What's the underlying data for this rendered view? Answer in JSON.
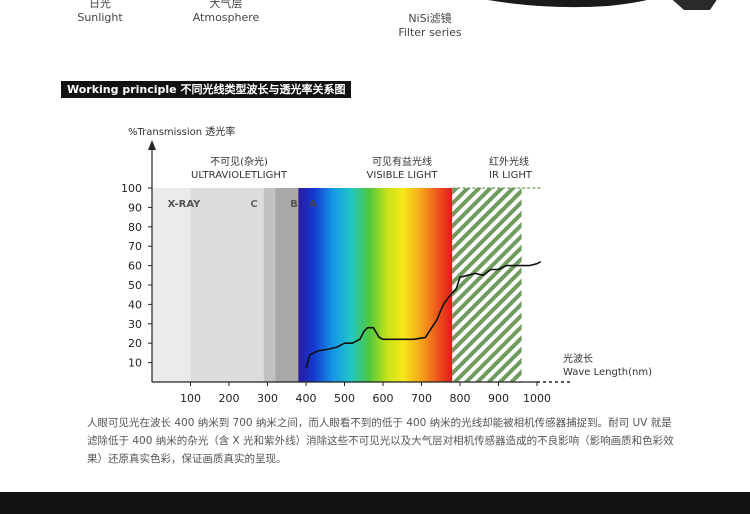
{
  "top": {
    "sunlight_cn": "日光",
    "sunlight_en": "Sunlight",
    "atmosphere_cn": "大气层",
    "atmosphere_en": "Atmosphere",
    "nisi_cn": "NiSi滤镜",
    "nisi_en": "Filter series"
  },
  "section": {
    "header": "Working principle 不同光线类型波长与透光率关系图"
  },
  "chart_data": {
    "type": "line",
    "ylabel": "%Transmission 透光率",
    "xlabel_cn": "光波长",
    "xlabel_en": "Wave Length(nm)",
    "x_ticks": [
      100,
      200,
      300,
      400,
      500,
      600,
      700,
      800,
      900,
      1000
    ],
    "y_ticks": [
      10,
      20,
      30,
      40,
      50,
      60,
      70,
      80,
      90,
      100
    ],
    "xlim": [
      0,
      1050
    ],
    "ylim": [
      0,
      100
    ],
    "regions": {
      "uv_title_cn": "不可见(杂光)",
      "uv_title_en": "ULTRAVIOLETLIGHT",
      "vis_title_cn": "可见有益光线",
      "vis_title_en": "VISIBLE LIGHT",
      "ir_title_cn": "红外光线",
      "ir_title_en": "IR LIGHT",
      "xray": "X-RAY",
      "c": "C",
      "b": "B",
      "a": "A"
    },
    "series": [
      {
        "x": [
          400,
          410,
          430,
          460,
          480,
          500,
          520,
          540,
          550,
          560,
          575,
          590,
          600,
          620,
          650,
          680,
          710,
          720,
          730,
          740,
          750,
          760,
          780,
          790,
          800,
          820,
          840,
          860,
          880,
          900,
          920,
          940,
          960,
          980,
          1000,
          1010
        ],
        "y": [
          7,
          14,
          16,
          17,
          18,
          20,
          20,
          22,
          26,
          28,
          28,
          23,
          22,
          22,
          22,
          22,
          23,
          26,
          29,
          32,
          37,
          41,
          46,
          48,
          54,
          55,
          56,
          55,
          58,
          58,
          60,
          60,
          60,
          60,
          61,
          62
        ]
      }
    ],
    "colors": {
      "xray": "#ebebeb",
      "c": "#dcdcdc",
      "b": "#c2c2c2",
      "a": "#a8a8a8",
      "ir": "#6f9b5e",
      "curve": "#111111"
    }
  },
  "caption": {
    "text": "人眼可见光在波长 400 纳米到 700 纳米之间，而人眼看不到的低于 400 纳米的光线却能被相机传感器捕捉到。耐司 UV 就是滤除低于 400 纳米的杂光（含 X 光和紫外线）消除这些不可见光以及大气层对相机传感器造成的不良影响（影响画质和色彩效果）还原真实色彩，保证画质真实的呈现。"
  }
}
